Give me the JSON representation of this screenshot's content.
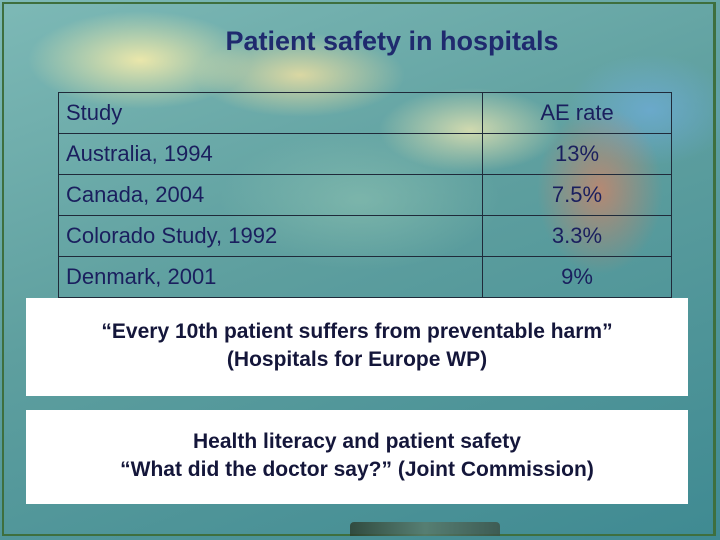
{
  "slide": {
    "title": "Patient safety in hospitals",
    "table": {
      "headers": [
        "Study",
        "AE rate"
      ],
      "rows": [
        [
          "Australia, 1994",
          "13%"
        ],
        [
          "Canada, 2004",
          "7.5%"
        ],
        [
          "Colorado Study, 1992",
          "3.3%"
        ],
        [
          "Denmark, 2001",
          "9%"
        ]
      ]
    },
    "callouts": [
      {
        "line1": "“Every 10th patient suffers from preventable harm”",
        "line2": "(Hospitals for Europe WP)"
      },
      {
        "line1": "Health literacy and patient safety",
        "line2": "“What did the doctor say?” (Joint Commission)"
      }
    ]
  }
}
